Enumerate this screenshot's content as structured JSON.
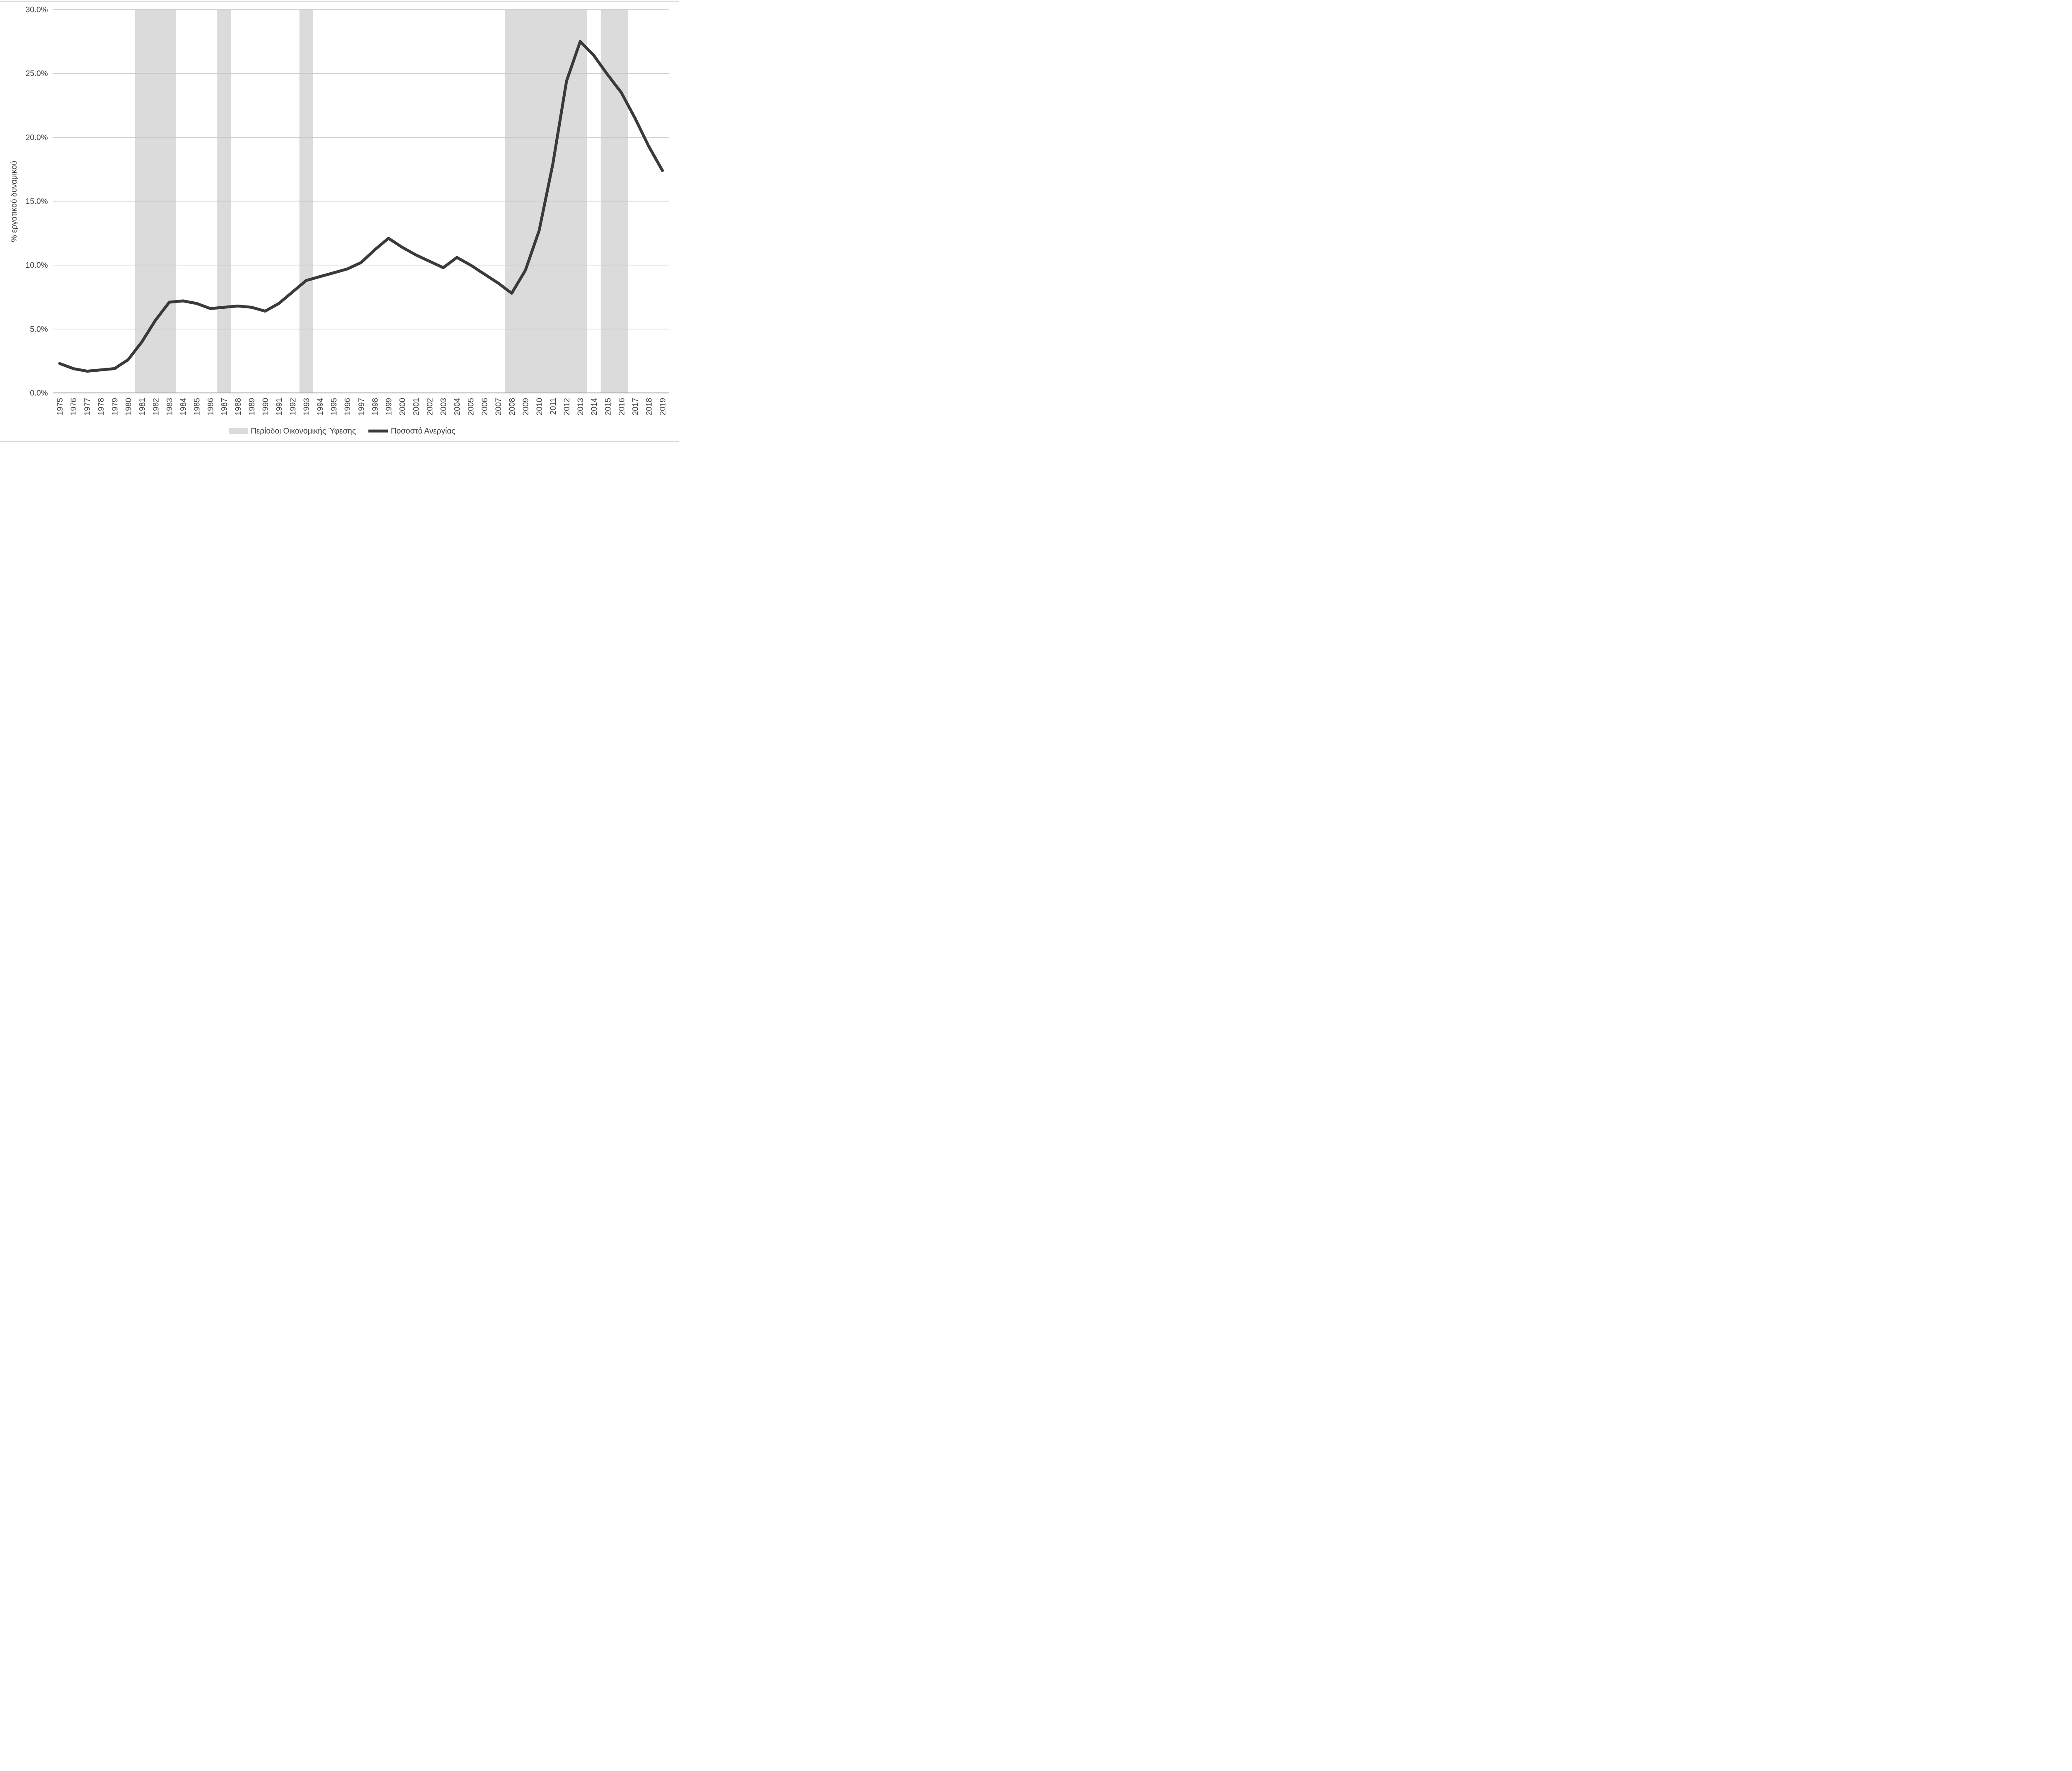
{
  "chart_data": {
    "type": "line",
    "title": "",
    "xlabel": "",
    "ylabel": "% εργατικού δυναμικού",
    "ylim": [
      0,
      30
    ],
    "ytick_step": 5,
    "ytick_labels": [
      "0.0%",
      "5.0%",
      "10.0%",
      "15.0%",
      "20.0%",
      "25.0%",
      "30.0%"
    ],
    "grid": "horizontal",
    "legend_position": "bottom-center",
    "x": [
      1975,
      1976,
      1977,
      1978,
      1979,
      1980,
      1981,
      1982,
      1983,
      1984,
      1985,
      1986,
      1987,
      1988,
      1989,
      1990,
      1991,
      1992,
      1993,
      1994,
      1995,
      1996,
      1997,
      1998,
      1999,
      2000,
      2001,
      2002,
      2003,
      2004,
      2005,
      2006,
      2007,
      2008,
      2009,
      2010,
      2011,
      2012,
      2013,
      2014,
      2015,
      2016,
      2017,
      2018,
      2019
    ],
    "series": [
      {
        "name": "Ποσοστό Ανεργίας",
        "values": [
          2.3,
          1.9,
          1.7,
          1.8,
          1.9,
          2.6,
          4.0,
          5.7,
          7.1,
          7.2,
          7.0,
          6.6,
          6.7,
          6.8,
          6.7,
          6.4,
          7.0,
          7.9,
          8.8,
          9.1,
          9.4,
          9.7,
          10.2,
          11.2,
          12.1,
          11.4,
          10.8,
          10.3,
          9.8,
          10.6,
          10.0,
          9.3,
          8.6,
          7.8,
          9.6,
          12.7,
          17.9,
          24.4,
          27.5,
          26.4,
          24.9,
          23.5,
          21.5,
          19.3,
          17.4
        ]
      }
    ],
    "recession_bands": [
      {
        "from": 1980.5,
        "to": 1983.5
      },
      {
        "from": 1986.5,
        "to": 1987.5
      },
      {
        "from": 1992.5,
        "to": 1993.5
      },
      {
        "from": 2007.5,
        "to": 2013.5
      },
      {
        "from": 2014.5,
        "to": 2016.5
      }
    ],
    "legend": [
      "Περίοδοι Οικονομικής Ύφεσης",
      "Ποσοστό Ανεργίας"
    ],
    "colors": {
      "line": "#3a3a3a",
      "band": "#dbdbdb",
      "grid": "#c8c8c8",
      "axis": "#a9a9a9",
      "text": "#3f3f3f",
      "border": "#d9d9d9",
      "background": "#ffffff"
    }
  }
}
